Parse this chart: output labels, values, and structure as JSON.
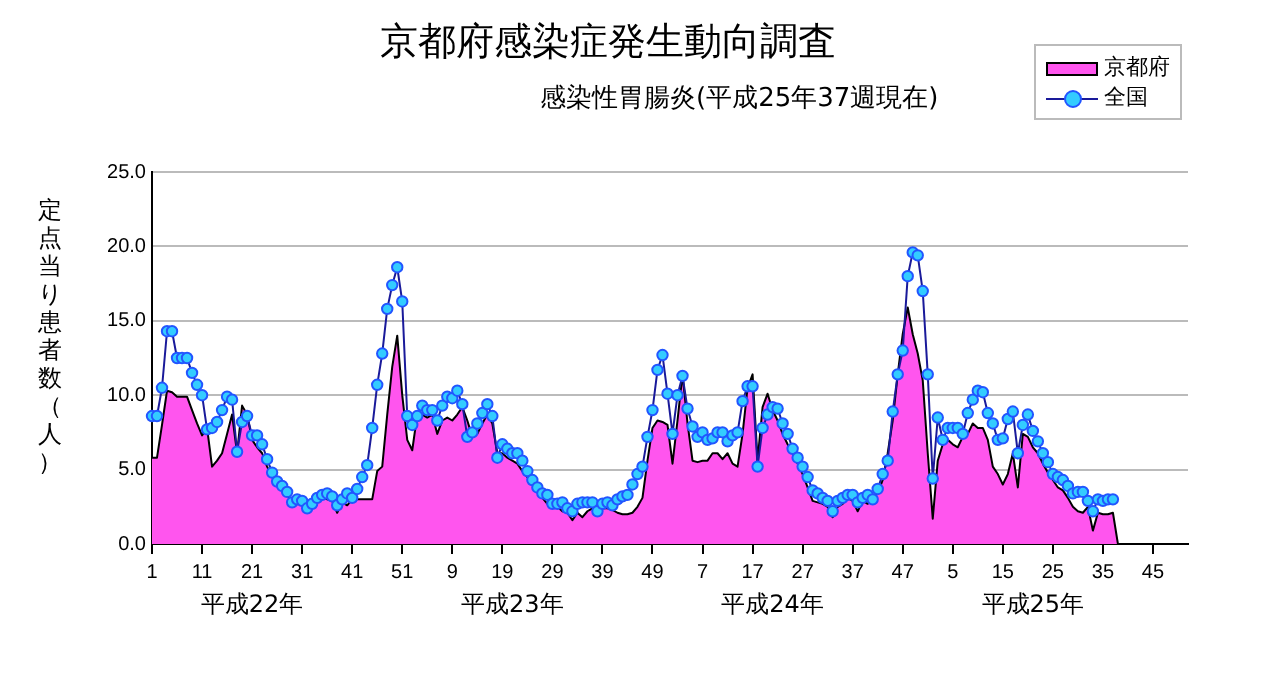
{
  "chart_data": {
    "type": "area",
    "title": "京都府感染症発生動向調査",
    "subtitle": "感染性胃腸炎(平成25年37週現在)",
    "ylabel": "定点当り患者数（人）",
    "annotations": [
      "平成22年",
      "平成23年",
      "平成24年",
      "平成25年"
    ],
    "categories": [
      "1",
      null,
      null,
      null,
      null,
      null,
      null,
      null,
      null,
      null,
      "11",
      null,
      null,
      null,
      null,
      null,
      null,
      null,
      null,
      null,
      "21",
      null,
      null,
      null,
      null,
      null,
      null,
      null,
      null,
      null,
      "31",
      null,
      null,
      null,
      null,
      null,
      null,
      null,
      null,
      null,
      "41",
      null,
      null,
      null,
      null,
      null,
      null,
      null,
      null,
      null,
      "51",
      null,
      null,
      null,
      null,
      null,
      null,
      null,
      null,
      null,
      "9",
      null,
      null,
      null,
      null,
      null,
      null,
      null,
      null,
      null,
      "19",
      null,
      null,
      null,
      null,
      null,
      null,
      null,
      null,
      null,
      "29",
      null,
      null,
      null,
      null,
      null,
      null,
      null,
      null,
      null,
      "39",
      null,
      null,
      null,
      null,
      null,
      null,
      null,
      null,
      null,
      "49",
      null,
      null,
      null,
      null,
      null,
      null,
      null,
      null,
      null,
      "7",
      null,
      null,
      null,
      null,
      null,
      null,
      null,
      null,
      null,
      "17",
      null,
      null,
      null,
      null,
      null,
      null,
      null,
      null,
      null,
      "27",
      null,
      null,
      null,
      null,
      null,
      null,
      null,
      null,
      null,
      "37",
      null,
      null,
      null,
      null,
      null,
      null,
      null,
      null,
      null,
      "47",
      null,
      null,
      null,
      null,
      null,
      null,
      null,
      null,
      null,
      "5",
      null,
      null,
      null,
      null,
      null,
      null,
      null,
      null,
      null,
      "15",
      null,
      null,
      null,
      null,
      null,
      null,
      null,
      null,
      null,
      "25",
      null,
      null,
      null,
      null,
      null,
      null,
      null,
      null,
      null,
      "35",
      null,
      null,
      null,
      null,
      null,
      null,
      null,
      null,
      null,
      "45",
      null,
      null,
      null,
      null,
      null,
      null,
      null
    ],
    "series": [
      {
        "name": "京都府",
        "color": "#ff55ee",
        "values": [
          5.8,
          5.8,
          8.0,
          10.3,
          10.2,
          9.9,
          9.9,
          9.9,
          9.0,
          8.1,
          7.3,
          7.8,
          5.2,
          5.6,
          6.1,
          7.4,
          8.7,
          6.1,
          9.3,
          8.7,
          7.0,
          6.5,
          6.1,
          5.2,
          4.5,
          4.0,
          3.6,
          3.4,
          2.7,
          2.8,
          2.6,
          2.4,
          2.6,
          3.1,
          3.1,
          3.0,
          2.9,
          2.1,
          2.8,
          2.6,
          3.0,
          3.0,
          3.0,
          3.0,
          3.0,
          4.9,
          5.2,
          8.7,
          11.9,
          14.0,
          10.0,
          7.0,
          6.3,
          8.7,
          8.7,
          8.5,
          8.7,
          7.4,
          8.3,
          8.5,
          8.3,
          8.7,
          9.2,
          8.3,
          7.2,
          7.4,
          8.1,
          8.7,
          8.1,
          6.1,
          6.1,
          5.8,
          5.6,
          5.4,
          4.9,
          4.5,
          4.0,
          3.6,
          3.1,
          2.7,
          2.6,
          2.5,
          2.2,
          2.1,
          1.6,
          2.1,
          1.8,
          2.2,
          2.4,
          2.4,
          2.4,
          2.4,
          2.3,
          2.1,
          2.0,
          2.0,
          2.1,
          2.5,
          3.1,
          5.6,
          7.8,
          8.3,
          8.2,
          8.0,
          5.4,
          8.3,
          11.4,
          8.1,
          5.6,
          5.5,
          5.6,
          5.6,
          6.1,
          6.1,
          5.7,
          6.1,
          5.4,
          5.2,
          7.4,
          10.5,
          11.4,
          5.6,
          9.2,
          10.1,
          9.0,
          8.3,
          7.4,
          6.7,
          6.1,
          5.4,
          4.7,
          3.8,
          2.9,
          2.8,
          2.7,
          2.5,
          1.8,
          2.5,
          2.7,
          3.1,
          2.9,
          2.2,
          2.9,
          2.7,
          3.1,
          3.4,
          4.3,
          6.1,
          8.3,
          11.4,
          14.1,
          15.9,
          14.1,
          12.8,
          11.0,
          6.1,
          1.7,
          5.6,
          6.7,
          7.0,
          6.7,
          6.5,
          7.2,
          7.4,
          8.1,
          7.8,
          7.8,
          7.0,
          5.2,
          4.7,
          4.0,
          4.7,
          6.1,
          3.8,
          7.4,
          7.2,
          6.5,
          6.1,
          5.4,
          4.8,
          4.3,
          3.8,
          3.6,
          3.1,
          2.5,
          2.2,
          2.1,
          2.5,
          0.9,
          2.1,
          2.0,
          2.0,
          2.1,
          0,
          null,
          null,
          null,
          null,
          null,
          null,
          null,
          null,
          null,
          null,
          null,
          null,
          null,
          null
        ]
      },
      {
        "name": "全国",
        "type": "line",
        "color": "#33ccff",
        "marker": "circle",
        "values": [
          8.6,
          8.6,
          10.5,
          14.3,
          14.3,
          12.5,
          12.5,
          12.5,
          11.5,
          10.7,
          10.0,
          7.7,
          7.8,
          8.2,
          9.0,
          9.9,
          9.7,
          6.2,
          8.2,
          8.6,
          7.3,
          7.3,
          6.7,
          5.7,
          4.8,
          4.2,
          3.9,
          3.5,
          2.8,
          3.0,
          2.9,
          2.4,
          2.7,
          3.1,
          3.3,
          3.4,
          3.2,
          2.6,
          3.0,
          3.4,
          3.1,
          3.7,
          4.5,
          5.3,
          7.8,
          10.7,
          12.8,
          15.8,
          17.4,
          18.6,
          16.3,
          8.6,
          8.0,
          8.6,
          9.3,
          9.0,
          9.0,
          8.3,
          9.3,
          9.9,
          9.8,
          10.3,
          9.4,
          7.2,
          7.5,
          8.1,
          8.8,
          9.4,
          8.6,
          5.8,
          6.7,
          6.4,
          6.1,
          6.1,
          5.6,
          4.9,
          4.3,
          3.8,
          3.4,
          3.3,
          2.7,
          2.7,
          2.8,
          2.4,
          2.2,
          2.7,
          2.8,
          2.8,
          2.8,
          2.2,
          2.7,
          2.8,
          2.6,
          3.0,
          3.2,
          3.3,
          4.0,
          4.7,
          5.2,
          7.2,
          9.0,
          11.7,
          12.7,
          10.1,
          7.4,
          10.0,
          11.3,
          9.1,
          7.9,
          7.2,
          7.5,
          7.0,
          7.1,
          7.5,
          7.5,
          6.9,
          7.3,
          7.5,
          9.6,
          10.6,
          10.6,
          5.2,
          7.8,
          8.7,
          9.2,
          9.1,
          8.1,
          7.4,
          6.4,
          5.8,
          5.2,
          4.5,
          3.6,
          3.4,
          3.1,
          2.9,
          2.2,
          2.9,
          3.1,
          3.3,
          3.3,
          2.8,
          3.1,
          3.3,
          3.0,
          3.7,
          4.7,
          5.6,
          8.9,
          11.4,
          13.0,
          18.0,
          19.6,
          19.4,
          17.0,
          11.4,
          4.4,
          8.5,
          7.0,
          7.8,
          7.8,
          7.8,
          7.4,
          8.8,
          9.7,
          10.3,
          10.2,
          8.8,
          8.1,
          7.0,
          7.1,
          8.4,
          8.9,
          6.1,
          8.0,
          8.7,
          7.6,
          6.9,
          6.1,
          5.5,
          4.7,
          4.5,
          4.3,
          3.9,
          3.4,
          3.5,
          3.5,
          2.9,
          2.2,
          3.0,
          2.9,
          3.0,
          3.0,
          null,
          null,
          null,
          null,
          null,
          null,
          null,
          null,
          null,
          null,
          null,
          null,
          null,
          null,
          null
        ]
      }
    ],
    "ylim": [
      0,
      25
    ],
    "yticks": [
      {
        "value": 0,
        "label": "0.0"
      },
      {
        "value": 5,
        "label": "5.0"
      },
      {
        "value": 10,
        "label": "10.0"
      },
      {
        "value": 15,
        "label": "15.0"
      },
      {
        "value": 20,
        "label": "20.0"
      },
      {
        "value": 25,
        "label": "25.0"
      }
    ],
    "grid": "y",
    "legend": "top right"
  }
}
